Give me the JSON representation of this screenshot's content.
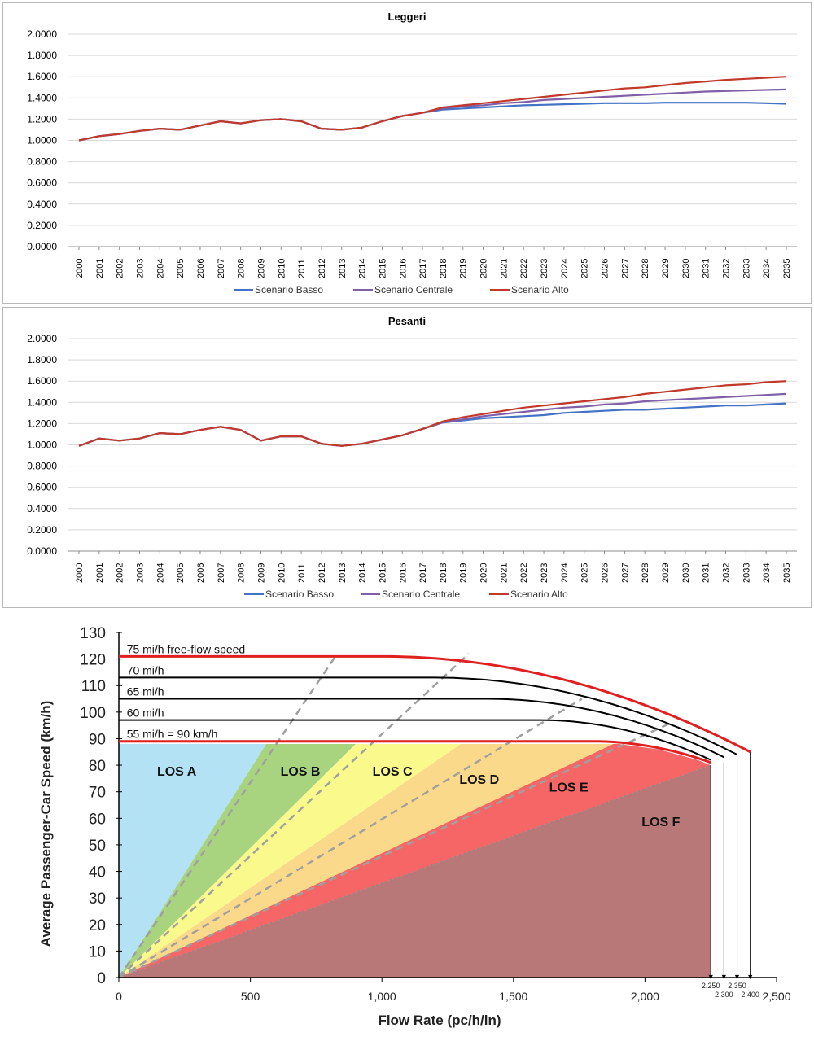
{
  "chart_data": [
    {
      "type": "line",
      "title": "Leggeri",
      "xlabel": "",
      "ylabel": "",
      "ylim": [
        0,
        2
      ],
      "yticks": [
        "0.0000",
        "0.2000",
        "0.4000",
        "0.6000",
        "0.8000",
        "1.0000",
        "1.2000",
        "1.4000",
        "1.6000",
        "1.8000",
        "2.0000"
      ],
      "grid": true,
      "legend_position": "bottom",
      "categories": [
        "2000",
        "2001",
        "2002",
        "2003",
        "2004",
        "2005",
        "2006",
        "2007",
        "2008",
        "2009",
        "2010",
        "2011",
        "2012",
        "2013",
        "2014",
        "2015",
        "2016",
        "2017",
        "2018",
        "2019",
        "2020",
        "2021",
        "2022",
        "2023",
        "2024",
        "2025",
        "2026",
        "2027",
        "2028",
        "2029",
        "2030",
        "2031",
        "2032",
        "2033",
        "2034",
        "2035"
      ],
      "series": [
        {
          "name": "Scenario Basso",
          "color": "#4472c4",
          "values": [
            1.0,
            1.04,
            1.06,
            1.09,
            1.11,
            1.1,
            1.14,
            1.18,
            1.16,
            1.19,
            1.2,
            1.18,
            1.11,
            1.1,
            1.12,
            1.18,
            1.23,
            1.26,
            1.29,
            1.3,
            1.31,
            1.32,
            1.33,
            1.335,
            1.34,
            1.345,
            1.35,
            1.35,
            1.35,
            1.355,
            1.355,
            1.355,
            1.355,
            1.355,
            1.35,
            1.345
          ]
        },
        {
          "name": "Scenario Centrale",
          "color": "#7f5fa8",
          "values": [
            1.0,
            1.04,
            1.06,
            1.09,
            1.11,
            1.1,
            1.14,
            1.18,
            1.16,
            1.19,
            1.2,
            1.18,
            1.11,
            1.1,
            1.12,
            1.18,
            1.23,
            1.26,
            1.3,
            1.32,
            1.33,
            1.35,
            1.36,
            1.38,
            1.39,
            1.4,
            1.41,
            1.42,
            1.43,
            1.44,
            1.45,
            1.46,
            1.465,
            1.47,
            1.475,
            1.48
          ]
        },
        {
          "name": "Scenario Alto",
          "color": "#c0392b",
          "values": [
            1.0,
            1.04,
            1.06,
            1.09,
            1.11,
            1.1,
            1.14,
            1.18,
            1.16,
            1.19,
            1.2,
            1.18,
            1.11,
            1.1,
            1.12,
            1.18,
            1.23,
            1.26,
            1.31,
            1.33,
            1.35,
            1.37,
            1.39,
            1.41,
            1.43,
            1.45,
            1.47,
            1.49,
            1.5,
            1.52,
            1.54,
            1.555,
            1.57,
            1.58,
            1.59,
            1.6
          ]
        }
      ]
    },
    {
      "type": "line",
      "title": "Pesanti",
      "xlabel": "",
      "ylabel": "",
      "ylim": [
        0,
        2
      ],
      "yticks": [
        "0.0000",
        "0.2000",
        "0.4000",
        "0.6000",
        "0.8000",
        "1.0000",
        "1.2000",
        "1.4000",
        "1.6000",
        "1.8000",
        "2.0000"
      ],
      "grid": true,
      "legend_position": "bottom",
      "categories": [
        "2000",
        "2001",
        "2002",
        "2003",
        "2004",
        "2005",
        "2006",
        "2007",
        "2008",
        "2009",
        "2010",
        "2011",
        "2012",
        "2013",
        "2014",
        "2015",
        "2016",
        "2017",
        "2018",
        "2019",
        "2020",
        "2021",
        "2022",
        "2023",
        "2024",
        "2025",
        "2026",
        "2027",
        "2028",
        "2029",
        "2030",
        "2031",
        "2032",
        "2033",
        "2034",
        "2035"
      ],
      "series": [
        {
          "name": "Scenario Basso",
          "color": "#4472c4",
          "values": [
            0.99,
            1.06,
            1.04,
            1.06,
            1.11,
            1.1,
            1.14,
            1.17,
            1.14,
            1.04,
            1.08,
            1.08,
            1.01,
            0.99,
            1.01,
            1.05,
            1.09,
            1.15,
            1.21,
            1.23,
            1.25,
            1.26,
            1.27,
            1.28,
            1.3,
            1.31,
            1.32,
            1.33,
            1.33,
            1.34,
            1.35,
            1.36,
            1.37,
            1.37,
            1.38,
            1.39
          ]
        },
        {
          "name": "Scenario Centrale",
          "color": "#7f5fa8",
          "values": [
            0.99,
            1.06,
            1.04,
            1.06,
            1.11,
            1.1,
            1.14,
            1.17,
            1.14,
            1.04,
            1.08,
            1.08,
            1.01,
            0.99,
            1.01,
            1.05,
            1.09,
            1.15,
            1.21,
            1.24,
            1.27,
            1.29,
            1.31,
            1.33,
            1.35,
            1.36,
            1.38,
            1.39,
            1.41,
            1.42,
            1.43,
            1.44,
            1.45,
            1.46,
            1.47,
            1.48
          ]
        },
        {
          "name": "Scenario Alto",
          "color": "#c0392b",
          "values": [
            0.99,
            1.06,
            1.04,
            1.06,
            1.11,
            1.1,
            1.14,
            1.17,
            1.14,
            1.04,
            1.08,
            1.08,
            1.01,
            0.99,
            1.01,
            1.05,
            1.09,
            1.15,
            1.22,
            1.26,
            1.29,
            1.32,
            1.35,
            1.37,
            1.39,
            1.41,
            1.43,
            1.45,
            1.48,
            1.5,
            1.52,
            1.54,
            1.56,
            1.57,
            1.59,
            1.6
          ]
        }
      ]
    },
    {
      "type": "area",
      "title": "",
      "xlabel": "Flow Rate (pc/h/ln)",
      "ylabel": "Average Passenger-Car Speed (km/h)",
      "xlim": [
        0,
        2500
      ],
      "ylim": [
        0,
        130
      ],
      "xticks": [
        0,
        500,
        1000,
        1500,
        2000,
        2500
      ],
      "xtick_labels": [
        "0",
        "500",
        "1,000",
        "1,500",
        "2,000",
        "2,500"
      ],
      "yticks": [
        0,
        10,
        20,
        30,
        40,
        50,
        60,
        70,
        80,
        90,
        100,
        110,
        120,
        130
      ],
      "capacity_ticks": [
        2250,
        2300,
        2350,
        2400
      ],
      "capacity_labels": [
        "2,250",
        "2,300",
        "2,350",
        "2,400"
      ],
      "speed_curves": [
        {
          "label": "75 mi/h free-flow speed",
          "speed_kmh": 121,
          "breakpoint": 1000,
          "capacity": 2400,
          "capacity_speed": 85,
          "color": "#e02020"
        },
        {
          "label": "70 mi/h",
          "speed_kmh": 113,
          "breakpoint": 1200,
          "capacity": 2350,
          "capacity_speed": 84,
          "color": "#000000"
        },
        {
          "label": "65 mi/h",
          "speed_kmh": 105,
          "breakpoint": 1400,
          "capacity": 2300,
          "capacity_speed": 83,
          "color": "#000000"
        },
        {
          "label": "60 mi/h",
          "speed_kmh": 97,
          "breakpoint": 1600,
          "capacity": 2250,
          "capacity_speed": 82,
          "color": "#000000"
        },
        {
          "label": "55 mi/h = 90 km/h",
          "speed_kmh": 89,
          "breakpoint": 1800,
          "capacity": 2250,
          "capacity_speed": 81,
          "color": "#e02020"
        }
      ],
      "los_regions": [
        {
          "label": "LOS A",
          "density_limit_kmh_slope": 7,
          "color": "#b2e2f4"
        },
        {
          "label": "LOS B",
          "density_limit_kmh_slope": 11,
          "color": "#a9d47f"
        },
        {
          "label": "LOS C",
          "density_limit_kmh_slope": 16,
          "color": "#fafa8c"
        },
        {
          "label": "LOS D",
          "density_limit_kmh_slope": 22,
          "color": "#fbd98a"
        },
        {
          "label": "LOS E",
          "density_limit_kmh_slope": 28,
          "color": "#f66666"
        },
        {
          "label": "LOS F",
          "color": "#b87878"
        }
      ]
    }
  ]
}
